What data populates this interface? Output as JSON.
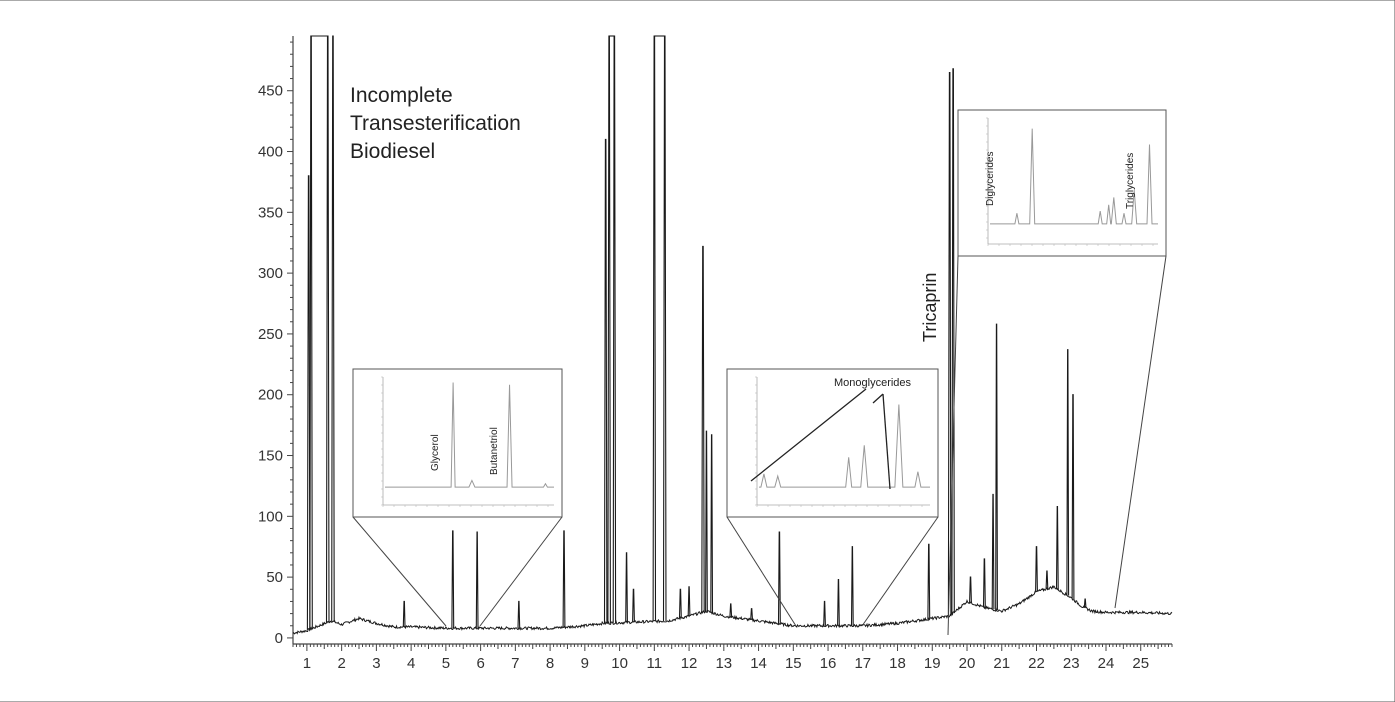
{
  "chart_data": {
    "type": "line",
    "title": [
      "Incomplete",
      "Transesterification",
      "Biodiesel"
    ],
    "xlabel": "",
    "ylabel": "",
    "xlim": [
      0.6,
      25.9
    ],
    "ylim": [
      -5,
      495
    ],
    "x_ticks": [
      1,
      2,
      3,
      4,
      5,
      6,
      7,
      8,
      9,
      10,
      11,
      12,
      13,
      14,
      15,
      16,
      17,
      18,
      19,
      20,
      21,
      22,
      23,
      24,
      25
    ],
    "y_ticks": [
      0,
      50,
      100,
      150,
      200,
      250,
      300,
      350,
      400,
      450
    ],
    "grid": false,
    "baseline": [
      [
        0.6,
        4
      ],
      [
        1.0,
        6
      ],
      [
        1.7,
        14
      ],
      [
        2.0,
        11
      ],
      [
        2.5,
        16
      ],
      [
        3.0,
        12
      ],
      [
        3.5,
        9
      ],
      [
        4.0,
        9
      ],
      [
        5.0,
        8
      ],
      [
        6.0,
        8
      ],
      [
        7.0,
        8
      ],
      [
        8.0,
        8
      ],
      [
        9.0,
        10
      ],
      [
        9.5,
        12
      ],
      [
        11.4,
        14
      ],
      [
        12.0,
        18
      ],
      [
        12.5,
        22
      ],
      [
        13.0,
        18
      ],
      [
        14.0,
        14
      ],
      [
        15.0,
        10
      ],
      [
        16.0,
        10
      ],
      [
        17.0,
        10
      ],
      [
        18.0,
        12
      ],
      [
        19.0,
        16
      ],
      [
        19.5,
        18
      ],
      [
        20.0,
        30
      ],
      [
        20.5,
        25
      ],
      [
        21.0,
        22
      ],
      [
        21.5,
        28
      ],
      [
        22.0,
        38
      ],
      [
        22.5,
        42
      ],
      [
        23.0,
        33
      ],
      [
        23.3,
        26
      ],
      [
        23.6,
        22
      ],
      [
        24.0,
        21
      ],
      [
        24.5,
        21
      ],
      [
        25.0,
        21
      ],
      [
        25.9,
        20
      ]
    ],
    "peaks": [
      [
        1.05,
        380
      ],
      [
        1.12,
        500
      ],
      [
        1.6,
        500
      ],
      [
        1.75,
        500
      ],
      [
        3.8,
        30
      ],
      [
        5.2,
        88
      ],
      [
        5.9,
        87
      ],
      [
        7.1,
        30
      ],
      [
        8.4,
        88
      ],
      [
        9.6,
        410
      ],
      [
        9.7,
        500
      ],
      [
        9.85,
        500
      ],
      [
        10.2,
        70
      ],
      [
        10.4,
        40
      ],
      [
        11.0,
        500
      ],
      [
        11.3,
        500
      ],
      [
        11.75,
        40
      ],
      [
        12.0,
        42
      ],
      [
        12.4,
        322
      ],
      [
        12.5,
        170
      ],
      [
        12.65,
        167
      ],
      [
        13.2,
        28
      ],
      [
        13.8,
        24
      ],
      [
        14.6,
        87
      ],
      [
        15.9,
        30
      ],
      [
        16.3,
        48
      ],
      [
        16.7,
        75
      ],
      [
        18.9,
        77
      ],
      [
        19.5,
        465
      ],
      [
        19.6,
        468
      ],
      [
        20.1,
        50
      ],
      [
        20.5,
        65
      ],
      [
        20.75,
        118
      ],
      [
        20.85,
        258
      ],
      [
        22.0,
        75
      ],
      [
        22.3,
        55
      ],
      [
        22.6,
        108
      ],
      [
        22.9,
        237
      ],
      [
        23.05,
        200
      ],
      [
        23.4,
        32
      ]
    ],
    "annotations": {
      "tricaprin": "Tricaprin"
    },
    "insets": [
      {
        "name": "glycerol-butanetriol",
        "labels": [
          "Glycerol",
          "Butanetriol"
        ],
        "source_range": [
          5.0,
          6.4
        ]
      },
      {
        "name": "monoglycerides",
        "labels": [
          "Monoglycerides"
        ],
        "source_range": [
          15.1,
          17.0
        ]
      },
      {
        "name": "di-triglycerides",
        "labels": [
          "Diglycerides",
          "Triglycerides"
        ],
        "source_range": [
          24.1,
          25.9
        ]
      }
    ],
    "colors": {
      "trace": "#1a1a1a",
      "inset_trace": "#999999",
      "axis": "#444444"
    }
  }
}
